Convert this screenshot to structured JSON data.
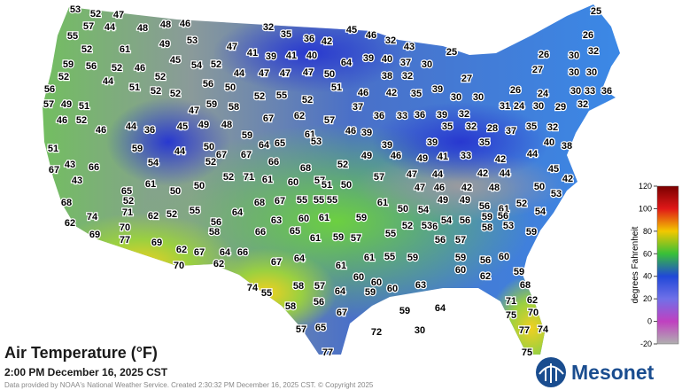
{
  "map": {
    "title": "Air Temperature (°F)",
    "subtitle": "2:00 PM December 16, 2025 CST",
    "credit": "Data provided by NOAA's National Weather Service. Created 2:30:32 PM December 16, 2025 CST. © Copyright 2025",
    "logo": "Mesonet",
    "stations": [
      53,
      52,
      47,
      25,
      57,
      44,
      48,
      48,
      46,
      32,
      45,
      46,
      26,
      55,
      53,
      35,
      36,
      42,
      32,
      49,
      43,
      52,
      61,
      47,
      41,
      25,
      26,
      30,
      32,
      45,
      39,
      41,
      40,
      64,
      39,
      40,
      37,
      59,
      56,
      52,
      46,
      54,
      52,
      30,
      27,
      30,
      30,
      47,
      44,
      47,
      47,
      50,
      38,
      32,
      52,
      44,
      52,
      56,
      51,
      39,
      27,
      30,
      56,
      51,
      52,
      50,
      46,
      42,
      35,
      26,
      24,
      30,
      33,
      36,
      52,
      55,
      52,
      30,
      57,
      49,
      51,
      59,
      52,
      37,
      31,
      24,
      30,
      29,
      32,
      47,
      58,
      46,
      52,
      67,
      62,
      57,
      36,
      33,
      36,
      39,
      32,
      46,
      44,
      36,
      45,
      49,
      48,
      35,
      32,
      28,
      37,
      35,
      32,
      59,
      61,
      46,
      39,
      64,
      65,
      53,
      39,
      39,
      35,
      40,
      38,
      51,
      59,
      44,
      50,
      67,
      67,
      66,
      49,
      46,
      49,
      41,
      33,
      42,
      44,
      67,
      43,
      66,
      54,
      52,
      68,
      52,
      57,
      45,
      52,
      71,
      61,
      60,
      57,
      47,
      44,
      42,
      44,
      43,
      61,
      50,
      51,
      50,
      42,
      65,
      50,
      47,
      46,
      42,
      48,
      50,
      53,
      68,
      52,
      68,
      67,
      55,
      55,
      55,
      61,
      49,
      49,
      56,
      61,
      52,
      54,
      64,
      50,
      54,
      74,
      71,
      52,
      55,
      63,
      60,
      61,
      59,
      52,
      56,
      54,
      56,
      59,
      56,
      56,
      62,
      70,
      62,
      66,
      65,
      55,
      53,
      58,
      53,
      59,
      69,
      77,
      61,
      59,
      57,
      57,
      56,
      69,
      62,
      67,
      64,
      66,
      58,
      61,
      55,
      59,
      59,
      56,
      60,
      70,
      62,
      67,
      64,
      61,
      60,
      62,
      59,
      60,
      60,
      74,
      55,
      58,
      57,
      64,
      59,
      60,
      63,
      68,
      58,
      56,
      71,
      62,
      59,
      64,
      67,
      75,
      70,
      57,
      65,
      72,
      30,
      77,
      74,
      77,
      75
    ]
  },
  "colorbar": {
    "label": "degrees Fahrenheit",
    "lim": [
      -20,
      120
    ],
    "ticks": [
      120,
      100,
      80,
      60,
      40,
      20,
      0,
      -20
    ],
    "colors": [
      "#7a0000",
      "#e01818",
      "#f2c800",
      "#38c038",
      "#2048d8",
      "#7070e8",
      "#c040c0",
      "#b0b0b0"
    ]
  }
}
